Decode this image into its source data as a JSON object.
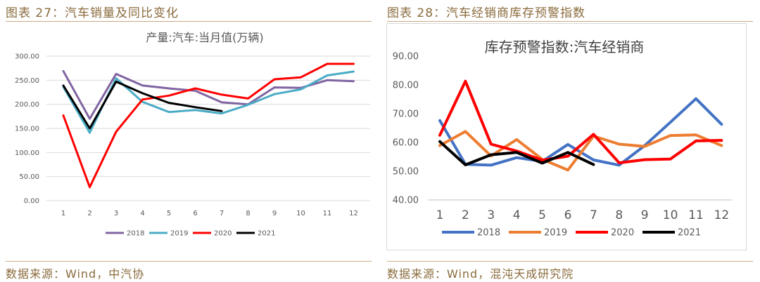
{
  "left_figure": {
    "caption": "图表 27：汽车销量及同比变化",
    "source": "数据来源：Wind，中汽协"
  },
  "right_figure": {
    "caption": "图表 28：汽车经销商库存预警指数",
    "source": "数据来源：Wind，混沌天成研究院"
  },
  "colors": {
    "caption": "#8a6b3c",
    "rule": "#c9a980",
    "left_2018": "#8064a2",
    "left_2019": "#4bacc6",
    "left_2020": "#ff0000",
    "left_2021": "#000000",
    "right_2018": "#4472c4",
    "right_2019": "#ed7d31",
    "right_2020": "#ff0000",
    "right_2021": "#000000"
  },
  "chart_data": [
    {
      "type": "line",
      "title": "产量:汽车:当月值(万辆)",
      "xlabel": "",
      "ylabel": "",
      "x": [
        "1",
        "2",
        "3",
        "4",
        "5",
        "6",
        "7",
        "8",
        "9",
        "10",
        "11",
        "12"
      ],
      "ylim": [
        0,
        300
      ],
      "yticks": [
        "0.00",
        "50.00",
        "100.00",
        "150.00",
        "200.00",
        "250.00",
        "300.00"
      ],
      "grid": true,
      "legend": "bottom",
      "series": [
        {
          "name": "2018",
          "values": [
            269,
            170,
            263,
            239,
            233,
            228,
            204,
            200,
            235,
            234,
            250,
            248
          ]
        },
        {
          "name": "2019",
          "values": [
            236,
            141,
            254,
            205,
            184,
            188,
            181,
            199,
            221,
            231,
            260,
            268
          ]
        },
        {
          "name": "2020",
          "values": [
            177,
            28,
            143,
            210,
            218,
            233,
            220,
            212,
            252,
            256,
            284,
            284
          ]
        },
        {
          "name": "2021",
          "values": [
            239,
            150,
            247,
            223,
            203,
            194,
            186,
            null,
            null,
            null,
            null,
            null
          ]
        }
      ]
    },
    {
      "type": "line",
      "title": "库存预警指数:汽车经销商",
      "xlabel": "",
      "ylabel": "",
      "x": [
        "1",
        "2",
        "3",
        "4",
        "5",
        "6",
        "7",
        "8",
        "9",
        "10",
        "11",
        "12"
      ],
      "ylim": [
        40,
        90
      ],
      "yticks": [
        "40.00",
        "50.00",
        "60.00",
        "70.00",
        "80.00",
        "90.00"
      ],
      "grid": false,
      "legend": "bottom",
      "series": [
        {
          "name": "2018",
          "values": [
            67.6,
            52.4,
            52.1,
            54.7,
            53.4,
            59.3,
            53.9,
            52.1,
            58.9,
            67.0,
            75.2,
            66.3
          ]
        },
        {
          "name": "2019",
          "values": [
            58.9,
            63.8,
            55.3,
            61.0,
            54.1,
            50.4,
            62.2,
            59.4,
            58.6,
            62.4,
            62.6,
            58.9
          ]
        },
        {
          "name": "2020",
          "values": [
            62.5,
            81.3,
            59.4,
            57.0,
            53.8,
            55.2,
            62.8,
            52.9,
            54.0,
            54.2,
            60.5,
            60.7
          ]
        },
        {
          "name": "2021",
          "values": [
            60.3,
            52.2,
            55.7,
            56.5,
            52.8,
            56.5,
            52.3,
            null,
            null,
            null,
            null,
            null
          ]
        }
      ]
    }
  ]
}
